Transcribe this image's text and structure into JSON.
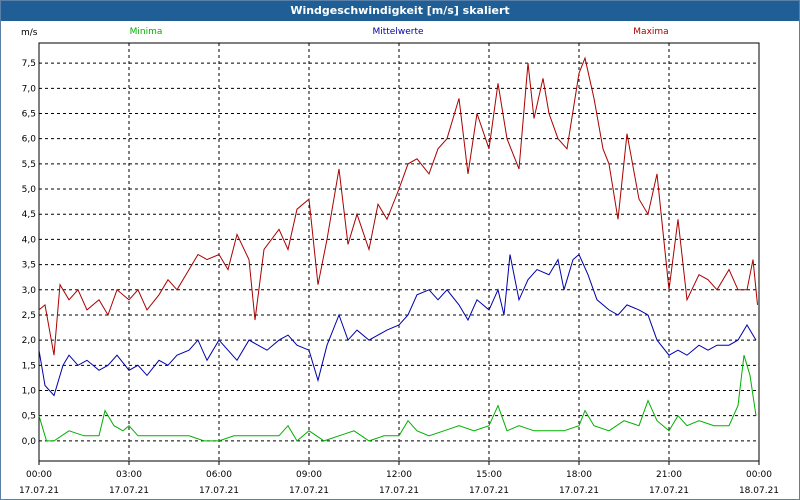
{
  "window": {
    "title": "Windgeschwindigkeit [m/s] skaliert"
  },
  "chart_data": {
    "type": "line",
    "title": "Windgeschwindigkeit [m/s] skaliert",
    "ylabel": "m/s",
    "xlabel": "",
    "ylim": [
      -0.4,
      7.9
    ],
    "yticks": [
      "0,0",
      "0,5",
      "1,0",
      "1,5",
      "2,0",
      "2,5",
      "3,0",
      "3,5",
      "4,0",
      "4,5",
      "5,0",
      "5,5",
      "6,0",
      "6,5",
      "7,0",
      "7,5"
    ],
    "xticks": [
      {
        "time": "00:00",
        "date": "17.07.21"
      },
      {
        "time": "03:00",
        "date": "17.07.21"
      },
      {
        "time": "06:00",
        "date": "17.07.21"
      },
      {
        "time": "09:00",
        "date": "17.07.21"
      },
      {
        "time": "12:00",
        "date": "17.07.21"
      },
      {
        "time": "15:00",
        "date": "17.07.21"
      },
      {
        "time": "18:00",
        "date": "17.07.21"
      },
      {
        "time": "21:00",
        "date": "17.07.21"
      },
      {
        "time": "00:00",
        "date": "18.07.21"
      }
    ],
    "grid": true,
    "legend_position": "top",
    "series": [
      {
        "name": "Minima",
        "color": "#00b000",
        "points": [
          [
            0,
            0.5
          ],
          [
            0.25,
            0
          ],
          [
            0.5,
            0
          ],
          [
            1,
            0.2
          ],
          [
            1.5,
            0.1
          ],
          [
            2,
            0.1
          ],
          [
            2.2,
            0.6
          ],
          [
            2.5,
            0.3
          ],
          [
            2.8,
            0.2
          ],
          [
            3,
            0.3
          ],
          [
            3.3,
            0.1
          ],
          [
            3.6,
            0.1
          ],
          [
            4,
            0.1
          ],
          [
            4.5,
            0.1
          ],
          [
            5,
            0.1
          ],
          [
            5.5,
            0
          ],
          [
            6,
            0
          ],
          [
            6.5,
            0.1
          ],
          [
            7,
            0.1
          ],
          [
            7.5,
            0.1
          ],
          [
            8,
            0.1
          ],
          [
            8.3,
            0.3
          ],
          [
            8.6,
            0
          ],
          [
            9,
            0.2
          ],
          [
            9.5,
            0
          ],
          [
            10,
            0.1
          ],
          [
            10.5,
            0.2
          ],
          [
            11,
            0
          ],
          [
            11.5,
            0.1
          ],
          [
            12,
            0.1
          ],
          [
            12.3,
            0.4
          ],
          [
            12.6,
            0.2
          ],
          [
            13,
            0.1
          ],
          [
            13.5,
            0.2
          ],
          [
            14,
            0.3
          ],
          [
            14.5,
            0.2
          ],
          [
            15,
            0.3
          ],
          [
            15.3,
            0.7
          ],
          [
            15.6,
            0.2
          ],
          [
            16,
            0.3
          ],
          [
            16.5,
            0.2
          ],
          [
            17,
            0.2
          ],
          [
            17.5,
            0.2
          ],
          [
            18,
            0.3
          ],
          [
            18.2,
            0.6
          ],
          [
            18.5,
            0.3
          ],
          [
            19,
            0.2
          ],
          [
            19.5,
            0.4
          ],
          [
            20,
            0.3
          ],
          [
            20.3,
            0.8
          ],
          [
            20.6,
            0.4
          ],
          [
            21,
            0.2
          ],
          [
            21.3,
            0.5
          ],
          [
            21.6,
            0.3
          ],
          [
            22,
            0.4
          ],
          [
            22.5,
            0.3
          ],
          [
            23,
            0.3
          ],
          [
            23.3,
            0.7
          ],
          [
            23.5,
            1.7
          ],
          [
            23.7,
            1.3
          ],
          [
            23.9,
            0.5
          ]
        ]
      },
      {
        "name": "Mittelwerte",
        "color": "#0000aa",
        "points": [
          [
            0,
            1.8
          ],
          [
            0.2,
            1.1
          ],
          [
            0.5,
            0.9
          ],
          [
            0.8,
            1.5
          ],
          [
            1,
            1.7
          ],
          [
            1.3,
            1.5
          ],
          [
            1.6,
            1.6
          ],
          [
            2,
            1.4
          ],
          [
            2.3,
            1.5
          ],
          [
            2.6,
            1.7
          ],
          [
            3,
            1.4
          ],
          [
            3.3,
            1.5
          ],
          [
            3.6,
            1.3
          ],
          [
            4,
            1.6
          ],
          [
            4.3,
            1.5
          ],
          [
            4.6,
            1.7
          ],
          [
            5,
            1.8
          ],
          [
            5.3,
            2.0
          ],
          [
            5.6,
            1.6
          ],
          [
            6,
            2.0
          ],
          [
            6.3,
            1.8
          ],
          [
            6.6,
            1.6
          ],
          [
            7,
            2.0
          ],
          [
            7.3,
            1.9
          ],
          [
            7.6,
            1.8
          ],
          [
            8,
            2.0
          ],
          [
            8.3,
            2.1
          ],
          [
            8.6,
            1.9
          ],
          [
            9,
            1.8
          ],
          [
            9.3,
            1.2
          ],
          [
            9.6,
            1.9
          ],
          [
            10,
            2.5
          ],
          [
            10.3,
            2.0
          ],
          [
            10.6,
            2.2
          ],
          [
            11,
            2.0
          ],
          [
            11.3,
            2.1
          ],
          [
            11.6,
            2.2
          ],
          [
            12,
            2.3
          ],
          [
            12.3,
            2.5
          ],
          [
            12.6,
            2.9
          ],
          [
            13,
            3.0
          ],
          [
            13.3,
            2.8
          ],
          [
            13.6,
            3.0
          ],
          [
            14,
            2.7
          ],
          [
            14.3,
            2.4
          ],
          [
            14.6,
            2.8
          ],
          [
            15,
            2.6
          ],
          [
            15.3,
            3.0
          ],
          [
            15.5,
            2.5
          ],
          [
            15.7,
            3.7
          ],
          [
            16,
            2.8
          ],
          [
            16.3,
            3.2
          ],
          [
            16.6,
            3.4
          ],
          [
            17,
            3.3
          ],
          [
            17.3,
            3.6
          ],
          [
            17.5,
            3.0
          ],
          [
            17.8,
            3.6
          ],
          [
            18,
            3.7
          ],
          [
            18.3,
            3.3
          ],
          [
            18.6,
            2.8
          ],
          [
            19,
            2.6
          ],
          [
            19.3,
            2.5
          ],
          [
            19.6,
            2.7
          ],
          [
            20,
            2.6
          ],
          [
            20.3,
            2.5
          ],
          [
            20.6,
            2.0
          ],
          [
            21,
            1.7
          ],
          [
            21.3,
            1.8
          ],
          [
            21.6,
            1.7
          ],
          [
            22,
            1.9
          ],
          [
            22.3,
            1.8
          ],
          [
            22.6,
            1.9
          ],
          [
            23,
            1.9
          ],
          [
            23.3,
            2.0
          ],
          [
            23.6,
            2.3
          ],
          [
            23.9,
            2.0
          ]
        ]
      },
      {
        "name": "Maxima",
        "color": "#aa0000",
        "points": [
          [
            0,
            2.6
          ],
          [
            0.2,
            2.7
          ],
          [
            0.5,
            1.7
          ],
          [
            0.7,
            3.1
          ],
          [
            1,
            2.8
          ],
          [
            1.3,
            3.0
          ],
          [
            1.6,
            2.6
          ],
          [
            2,
            2.8
          ],
          [
            2.3,
            2.5
          ],
          [
            2.6,
            3.0
          ],
          [
            3,
            2.8
          ],
          [
            3.3,
            3.0
          ],
          [
            3.6,
            2.6
          ],
          [
            4,
            2.9
          ],
          [
            4.3,
            3.2
          ],
          [
            4.6,
            3.0
          ],
          [
            5,
            3.4
          ],
          [
            5.3,
            3.7
          ],
          [
            5.6,
            3.6
          ],
          [
            6,
            3.7
          ],
          [
            6.3,
            3.4
          ],
          [
            6.6,
            4.1
          ],
          [
            7,
            3.6
          ],
          [
            7.2,
            2.4
          ],
          [
            7.5,
            3.8
          ],
          [
            8,
            4.2
          ],
          [
            8.3,
            3.8
          ],
          [
            8.6,
            4.6
          ],
          [
            9,
            4.8
          ],
          [
            9.3,
            3.1
          ],
          [
            9.6,
            4.0
          ],
          [
            10,
            5.4
          ],
          [
            10.3,
            3.9
          ],
          [
            10.6,
            4.5
          ],
          [
            11,
            3.8
          ],
          [
            11.3,
            4.7
          ],
          [
            11.6,
            4.4
          ],
          [
            12,
            5.0
          ],
          [
            12.3,
            5.5
          ],
          [
            12.6,
            5.6
          ],
          [
            13,
            5.3
          ],
          [
            13.3,
            5.8
          ],
          [
            13.6,
            6.0
          ],
          [
            14,
            6.8
          ],
          [
            14.3,
            5.3
          ],
          [
            14.6,
            6.5
          ],
          [
            15,
            5.8
          ],
          [
            15.3,
            7.1
          ],
          [
            15.6,
            6.0
          ],
          [
            16,
            5.4
          ],
          [
            16.3,
            7.5
          ],
          [
            16.5,
            6.4
          ],
          [
            16.8,
            7.2
          ],
          [
            17,
            6.5
          ],
          [
            17.3,
            6.0
          ],
          [
            17.6,
            5.8
          ],
          [
            18,
            7.3
          ],
          [
            18.2,
            7.6
          ],
          [
            18.5,
            6.8
          ],
          [
            18.8,
            5.8
          ],
          [
            19,
            5.5
          ],
          [
            19.3,
            4.4
          ],
          [
            19.6,
            6.1
          ],
          [
            20,
            4.8
          ],
          [
            20.3,
            4.5
          ],
          [
            20.6,
            5.3
          ],
          [
            21,
            3.0
          ],
          [
            21.3,
            4.4
          ],
          [
            21.6,
            2.8
          ],
          [
            22,
            3.3
          ],
          [
            22.3,
            3.2
          ],
          [
            22.6,
            3.0
          ],
          [
            23,
            3.4
          ],
          [
            23.3,
            3.0
          ],
          [
            23.6,
            3.0
          ],
          [
            23.8,
            3.6
          ],
          [
            23.95,
            2.7
          ]
        ]
      }
    ]
  }
}
